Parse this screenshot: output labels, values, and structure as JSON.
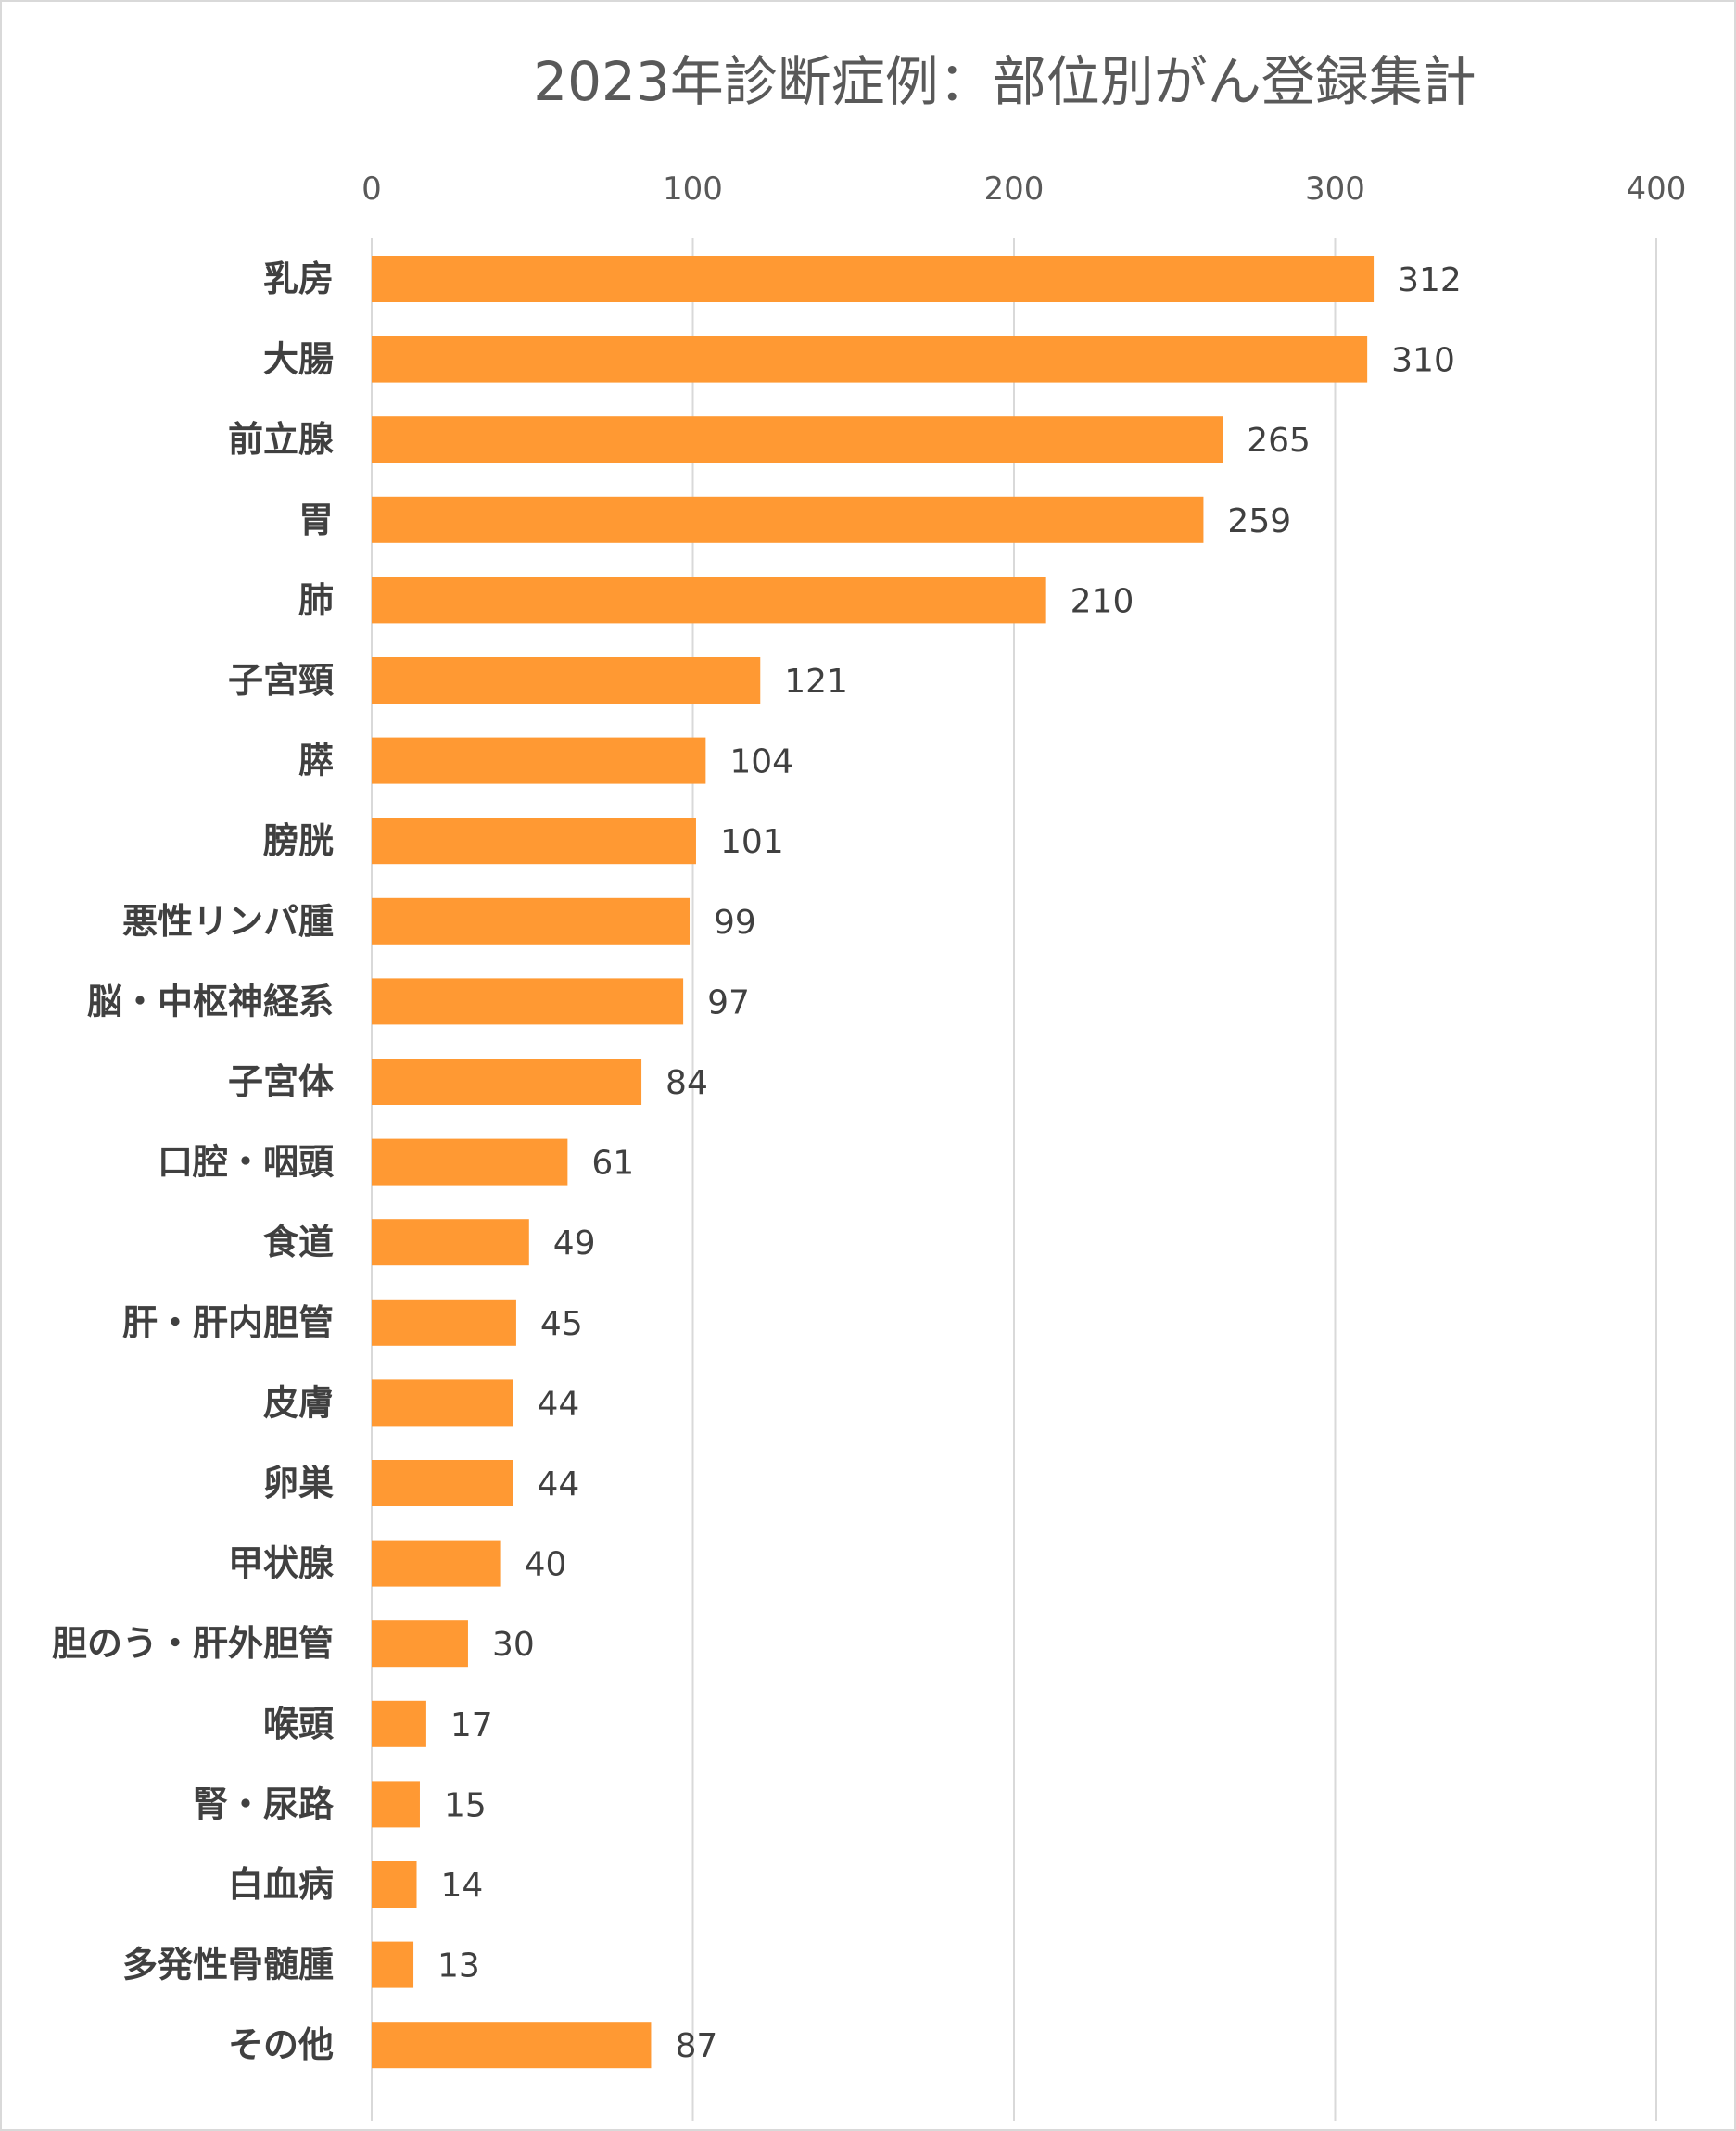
{
  "chart_data": {
    "type": "bar",
    "orientation": "horizontal",
    "title": "2023年診断症例：部位別がん登録集計",
    "xlabel": "",
    "ylabel": "",
    "xlim": [
      0,
      400
    ],
    "x_ticks": [
      0,
      100,
      200,
      300,
      400
    ],
    "x_axis_position": "top",
    "grid": true,
    "legend": "none",
    "bar_color": "#FF9933",
    "categories": [
      "乳房",
      "大腸",
      "前立腺",
      "胃",
      "肺",
      "子宮頸",
      "膵",
      "膀胱",
      "悪性リンパ腫",
      "脳・中枢神経系",
      "子宮体",
      "口腔・咽頭",
      "食道",
      "肝・肝内胆管",
      "皮膚",
      "卵巣",
      "甲状腺",
      "胆のう・肝外胆管",
      "喉頭",
      "腎・尿路",
      "白血病",
      "多発性骨髄腫",
      "その他"
    ],
    "values": [
      312,
      310,
      265,
      259,
      210,
      121,
      104,
      101,
      99,
      97,
      84,
      61,
      49,
      45,
      44,
      44,
      40,
      30,
      17,
      15,
      14,
      13,
      87
    ]
  }
}
